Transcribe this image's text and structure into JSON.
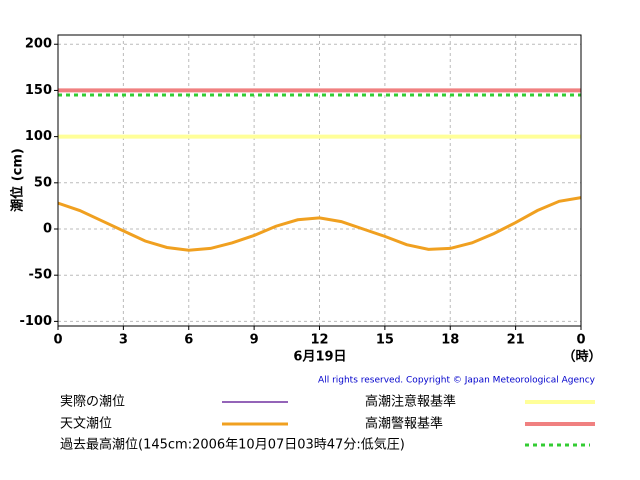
{
  "chart_data": {
    "type": "line",
    "ylabel": "潮位 (cm)",
    "xlabel": "6月19日",
    "xunit": "（時）",
    "copyright": "All rights reserved. Copyright © Japan Meteorological Agency",
    "xlim": [
      0,
      24
    ],
    "xticks": [
      0,
      3,
      6,
      9,
      12,
      15,
      18,
      21,
      {
        "value": 24,
        "label": "0"
      }
    ],
    "ylim": [
      -105,
      210
    ],
    "yticks": [
      -100,
      -50,
      0,
      50,
      100,
      150,
      200
    ],
    "grid": true,
    "series": [
      {
        "name": "実際の潮位",
        "color": "#7030a0",
        "x": [],
        "values": []
      },
      {
        "name": "天文潮位",
        "color": "#f0a020",
        "x": [
          0,
          1,
          2,
          3,
          4,
          5,
          6,
          7,
          8,
          9,
          10,
          11,
          12,
          13,
          14,
          15,
          16,
          17,
          18,
          19,
          20,
          21,
          22,
          23,
          24
        ],
        "values": [
          28,
          20,
          9,
          -2,
          -13,
          -20,
          -23,
          -21,
          -15,
          -7,
          3,
          10,
          12,
          8,
          0,
          -8,
          -17,
          -22,
          -21,
          -15,
          -5,
          7,
          20,
          30,
          34
        ]
      }
    ],
    "reference_lines": [
      {
        "name": "高潮注意報基準",
        "color": "#ffff99",
        "value": 100,
        "style": "solid"
      },
      {
        "name": "高潮警報基準",
        "color": "#f08080",
        "value": 150,
        "style": "solid"
      },
      {
        "name": "過去最高潮位(145cm:2006年10月07日03時47分:低気圧)",
        "color": "#33cc33",
        "value": 145,
        "style": "dotted"
      }
    ]
  }
}
